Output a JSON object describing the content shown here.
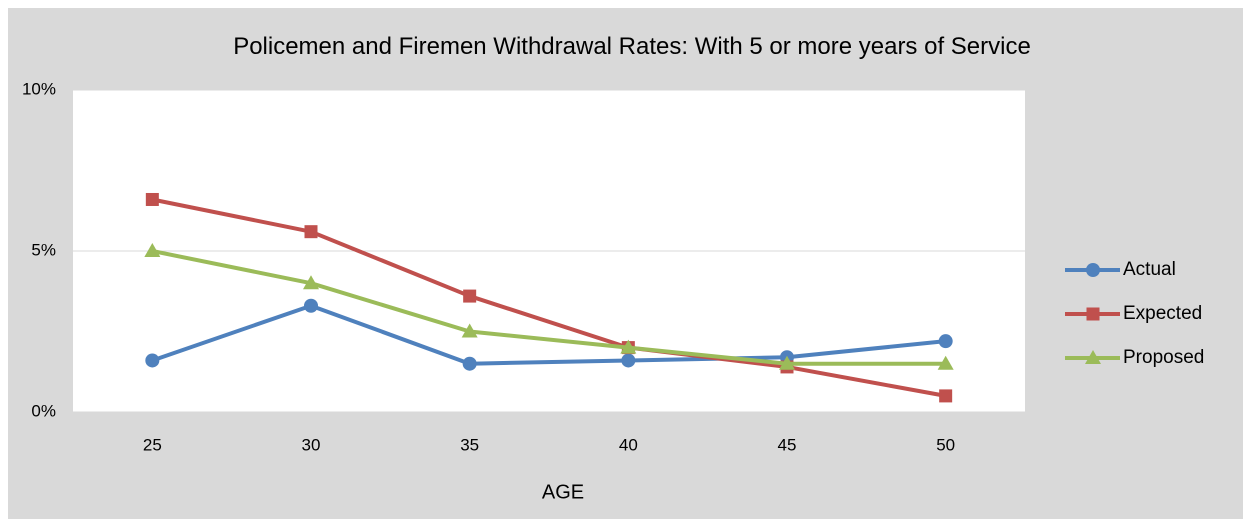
{
  "chart_data": {
    "type": "line",
    "title": "Policemen and Firemen Withdrawal Rates:  With 5 or more years of Service",
    "x_label": "AGE",
    "categories": [
      "25",
      "30",
      "35",
      "40",
      "45",
      "50"
    ],
    "series": [
      {
        "name": "Actual",
        "color": "#4f81bd",
        "marker": "circle",
        "values": [
          1.6,
          3.3,
          1.5,
          1.6,
          1.7,
          2.2
        ]
      },
      {
        "name": "Expected",
        "color": "#c0504d",
        "marker": "square",
        "values": [
          6.6,
          5.6,
          3.6,
          2.0,
          1.4,
          0.5
        ]
      },
      {
        "name": "Proposed",
        "color": "#9bbb59",
        "marker": "triangle",
        "values": [
          5.0,
          4.0,
          2.5,
          2.0,
          1.5,
          1.5
        ]
      }
    ],
    "ylim": [
      0,
      10
    ],
    "yticks": [
      {
        "value": 0,
        "label": "0%"
      },
      {
        "value": 5,
        "label": "5%"
      },
      {
        "value": 10,
        "label": "10%"
      }
    ],
    "grid": true,
    "legend": "right"
  }
}
